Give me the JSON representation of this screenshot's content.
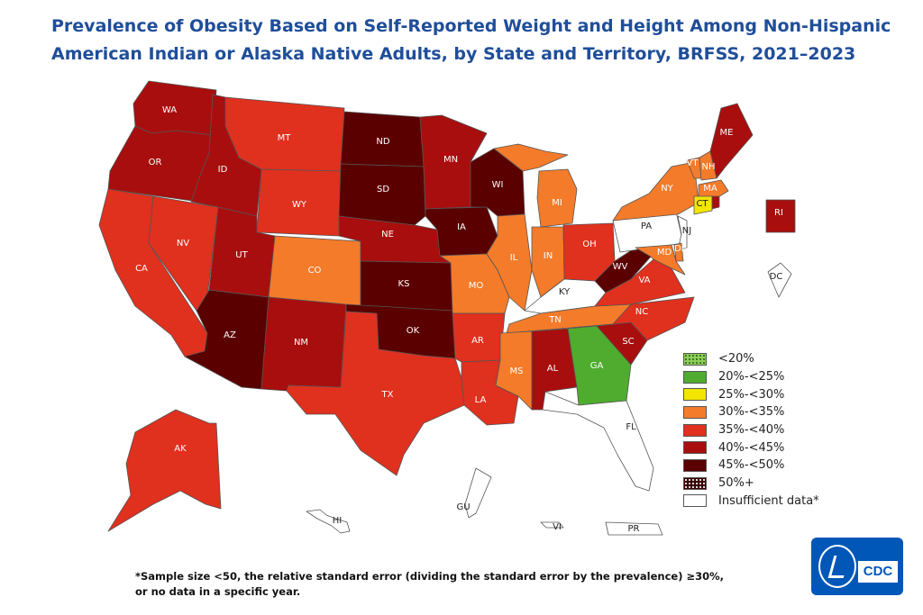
{
  "title": {
    "line1": "Prevalence of Obesity Based on Self-Reported Weight and Height Among Non-Hispanic",
    "line2": "American Indian or Alaska Native Adults, by State and Territory, BRFSS, 2021–2023"
  },
  "legend": [
    {
      "label": "<20%",
      "color": "#8fce5a",
      "pattern": "dots"
    },
    {
      "label": "20%-<25%",
      "color": "#4fac2e"
    },
    {
      "label": "25%-<30%",
      "color": "#f2e500"
    },
    {
      "label": "30%-<35%",
      "color": "#f47b2a"
    },
    {
      "label": "35%-<40%",
      "color": "#e0301e"
    },
    {
      "label": "40%-<45%",
      "color": "#a80e0e"
    },
    {
      "label": "45%-<50%",
      "color": "#5a0000"
    },
    {
      "label": "50%+",
      "color": "#3a0000",
      "pattern": "dots"
    },
    {
      "label": "Insufficient data*",
      "color": "#ffffff"
    }
  ],
  "states": {
    "WA": {
      "label": "WA",
      "category": "40%-<45%"
    },
    "OR": {
      "label": "OR",
      "category": "40%-<45%"
    },
    "CA": {
      "label": "CA",
      "category": "35%-<40%"
    },
    "NV": {
      "label": "NV",
      "category": "35%-<40%"
    },
    "ID": {
      "label": "ID",
      "category": "40%-<45%"
    },
    "MT": {
      "label": "MT",
      "category": "35%-<40%"
    },
    "WY": {
      "label": "WY",
      "category": "35%-<40%"
    },
    "UT": {
      "label": "UT",
      "category": "40%-<45%"
    },
    "AZ": {
      "label": "AZ",
      "category": "45%-<50%"
    },
    "CO": {
      "label": "CO",
      "category": "30%-<35%"
    },
    "NM": {
      "label": "NM",
      "category": "40%-<45%"
    },
    "ND": {
      "label": "ND",
      "category": "45%-<50%"
    },
    "SD": {
      "label": "SD",
      "category": "45%-<50%"
    },
    "NE": {
      "label": "NE",
      "category": "40%-<45%"
    },
    "KS": {
      "label": "KS",
      "category": "45%-<50%"
    },
    "OK": {
      "label": "OK",
      "category": "45%-<50%"
    },
    "TX": {
      "label": "TX",
      "category": "35%-<40%"
    },
    "MN": {
      "label": "MN",
      "category": "40%-<45%"
    },
    "IA": {
      "label": "IA",
      "category": "45%-<50%"
    },
    "MO": {
      "label": "MO",
      "category": "30%-<35%"
    },
    "AR": {
      "label": "AR",
      "category": "35%-<40%"
    },
    "LA": {
      "label": "LA",
      "category": "35%-<40%"
    },
    "WI": {
      "label": "WI",
      "category": "45%-<50%"
    },
    "IL": {
      "label": "IL",
      "category": "30%-<35%"
    },
    "MI": {
      "label": "MI",
      "category": "30%-<35%"
    },
    "IN": {
      "label": "IN",
      "category": "30%-<35%"
    },
    "OH": {
      "label": "OH",
      "category": "35%-<40%"
    },
    "KY": {
      "label": "KY",
      "category": "Insufficient data*"
    },
    "TN": {
      "label": "TN",
      "category": "30%-<35%"
    },
    "MS": {
      "label": "MS",
      "category": "30%-<35%"
    },
    "AL": {
      "label": "AL",
      "category": "40%-<45%"
    },
    "GA": {
      "label": "GA",
      "category": "20%-<25%"
    },
    "FL": {
      "label": "FL",
      "category": "Insufficient data*"
    },
    "SC": {
      "label": "SC",
      "category": "40%-<45%"
    },
    "NC": {
      "label": "NC",
      "category": "35%-<40%"
    },
    "VA": {
      "label": "VA",
      "category": "35%-<40%"
    },
    "WV": {
      "label": "WV",
      "category": "45%-<50%"
    },
    "PA": {
      "label": "PA",
      "category": "Insufficient data*"
    },
    "NY": {
      "label": "NY",
      "category": "30%-<35%"
    },
    "VT": {
      "label": "VT",
      "category": "30%-<35%"
    },
    "NH": {
      "label": "NH",
      "category": "30%-<35%"
    },
    "ME": {
      "label": "ME",
      "category": "40%-<45%"
    },
    "MA": {
      "label": "MA",
      "category": "30%-<35%"
    },
    "CT": {
      "label": "CT",
      "category": "25%-<30%"
    },
    "RI": {
      "label": "RI",
      "category": "40%-<45%"
    },
    "NJ": {
      "label": "NJ",
      "category": "Insufficient data*"
    },
    "DE": {
      "label": "DE",
      "category": "30%-<35%"
    },
    "MD": {
      "label": "MD",
      "category": "30%-<35%"
    },
    "DC": {
      "label": "DC",
      "category": "Insufficient data*"
    },
    "AK": {
      "label": "AK",
      "category": "35%-<40%"
    },
    "HI": {
      "label": "HI",
      "category": "Insufficient data*"
    },
    "GU": {
      "label": "GU",
      "category": "Insufficient data*"
    },
    "VI": {
      "label": "VI",
      "category": "Insufficient data*"
    },
    "PR": {
      "label": "PR",
      "category": "Insufficient data*"
    }
  },
  "footnote": {
    "line1": "*Sample size <50, the relative standard error (dividing the standard error by the prevalence) ≥30%,",
    "line2": "or no data in a specific year."
  },
  "logo": {
    "text": "CDC",
    "color": "#0057b8"
  }
}
